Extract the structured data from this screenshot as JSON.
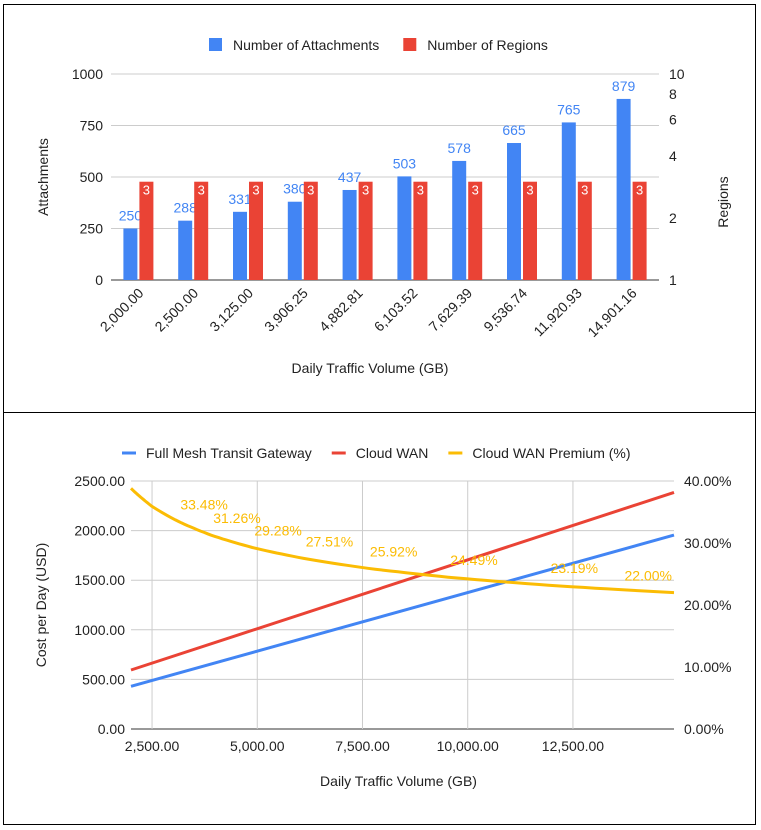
{
  "chart_data": [
    {
      "type": "bar",
      "categories": [
        "2,000.00",
        "2,500.00",
        "3,125.00",
        "3,906.25",
        "4,882.81",
        "6,103.52",
        "7,629.39",
        "9,536.74",
        "11,920.93",
        "14,901.16"
      ],
      "series": [
        {
          "name": "Number of Attachments",
          "values": [
            250,
            288,
            331,
            380,
            437,
            503,
            578,
            665,
            765,
            879
          ],
          "color": "#4285f4",
          "axis": "left",
          "labels": [
            "250",
            "288",
            "331",
            "380",
            "437",
            "503",
            "578",
            "665",
            "765",
            "879"
          ]
        },
        {
          "name": "Number of Regions",
          "values": [
            3,
            3,
            3,
            3,
            3,
            3,
            3,
            3,
            3,
            3
          ],
          "color": "#ea4335",
          "axis": "right",
          "labels": [
            "3",
            "3",
            "3",
            "3",
            "3",
            "3",
            "3",
            "3",
            "3",
            "3"
          ]
        }
      ],
      "xlabel": "Daily Traffic Volume (GB)",
      "ylabel": "Attachments",
      "ylabel_right": "Regions",
      "ylim": [
        0,
        1000
      ],
      "yticks": [
        "0",
        "250",
        "500",
        "750",
        "1000"
      ],
      "yticks_right": [
        "1",
        "2",
        "4",
        "6",
        "8",
        "10"
      ],
      "ylim_right": [
        1,
        10
      ],
      "right_scale": "log",
      "grid": true,
      "legend_position": "top"
    },
    {
      "type": "line",
      "series": [
        {
          "name": "Full Mesh Transit Gateway",
          "color": "#4285f4",
          "axis": "left",
          "x": [
            2000,
            14901.16
          ],
          "y": [
            430,
            1955
          ]
        },
        {
          "name": "Cloud WAN",
          "color": "#ea4335",
          "axis": "left",
          "x": [
            2000,
            14901.16
          ],
          "y": [
            595,
            2385
          ]
        },
        {
          "name": "Cloud WAN Premium (%)",
          "color": "#fbbc04",
          "axis": "right",
          "x": [
            2000,
            2500,
            3125,
            3906.25,
            4882.81,
            6103.52,
            7629.39,
            9536.74,
            11920.93,
            14901.16
          ],
          "y": [
            38.8,
            35.9,
            33.48,
            31.26,
            29.28,
            27.51,
            25.92,
            24.49,
            23.19,
            22.0
          ],
          "labels": [
            "",
            "",
            "33.48%",
            "31.26%",
            "29.28%",
            "27.51%",
            "25.92%",
            "24.49%",
            "23.19%",
            "22.00%"
          ]
        }
      ],
      "xlabel": "Daily Traffic Volume (GB)",
      "ylabel": "Cost per Day (USD)",
      "xlim": [
        2000,
        14901.16
      ],
      "ylim": [
        0,
        2500
      ],
      "ylim_right": [
        0,
        40
      ],
      "xticks": [
        2500,
        5000,
        7500,
        10000,
        12500
      ],
      "xtick_labels": [
        "2,500.00",
        "5,000.00",
        "7,500.00",
        "10,000.00",
        "12,500.00"
      ],
      "yticks": [
        "0.00",
        "500.00",
        "1000.00",
        "1500.00",
        "2000.00",
        "2500.00"
      ],
      "yticks_right": [
        "0.00%",
        "10.00%",
        "20.00%",
        "30.00%",
        "40.00%"
      ],
      "grid": true,
      "legend_position": "top"
    }
  ]
}
